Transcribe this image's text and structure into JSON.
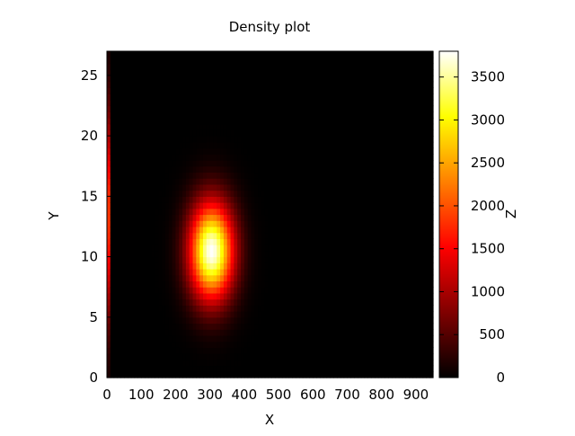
{
  "chart_data": {
    "type": "heatmap",
    "title": "Density plot",
    "xlabel": "X",
    "ylabel": "Y",
    "zlabel": "Z",
    "xlim": [
      0,
      950
    ],
    "ylim": [
      0,
      27
    ],
    "zlim": [
      0,
      3800
    ],
    "x_ticks": [
      0,
      100,
      200,
      300,
      400,
      500,
      600,
      700,
      800,
      900
    ],
    "y_ticks": [
      0,
      5,
      10,
      15,
      20,
      25
    ],
    "z_ticks": [
      0,
      500,
      1000,
      1500,
      2000,
      2500,
      3000,
      3500
    ],
    "colormap": [
      "#000000",
      "#800000",
      "#ff0000",
      "#ff8000",
      "#ffff00",
      "#ffffff"
    ],
    "grid": false,
    "features": [
      {
        "x_center": 305,
        "y_center": 10.5,
        "x_spread": 45,
        "y_spread": 2.8,
        "peak_z": 3800
      },
      {
        "x_center": 2,
        "y_center": 13.5,
        "x_spread": 3,
        "y_spread": 6.0,
        "peak_z": 3000
      }
    ]
  }
}
